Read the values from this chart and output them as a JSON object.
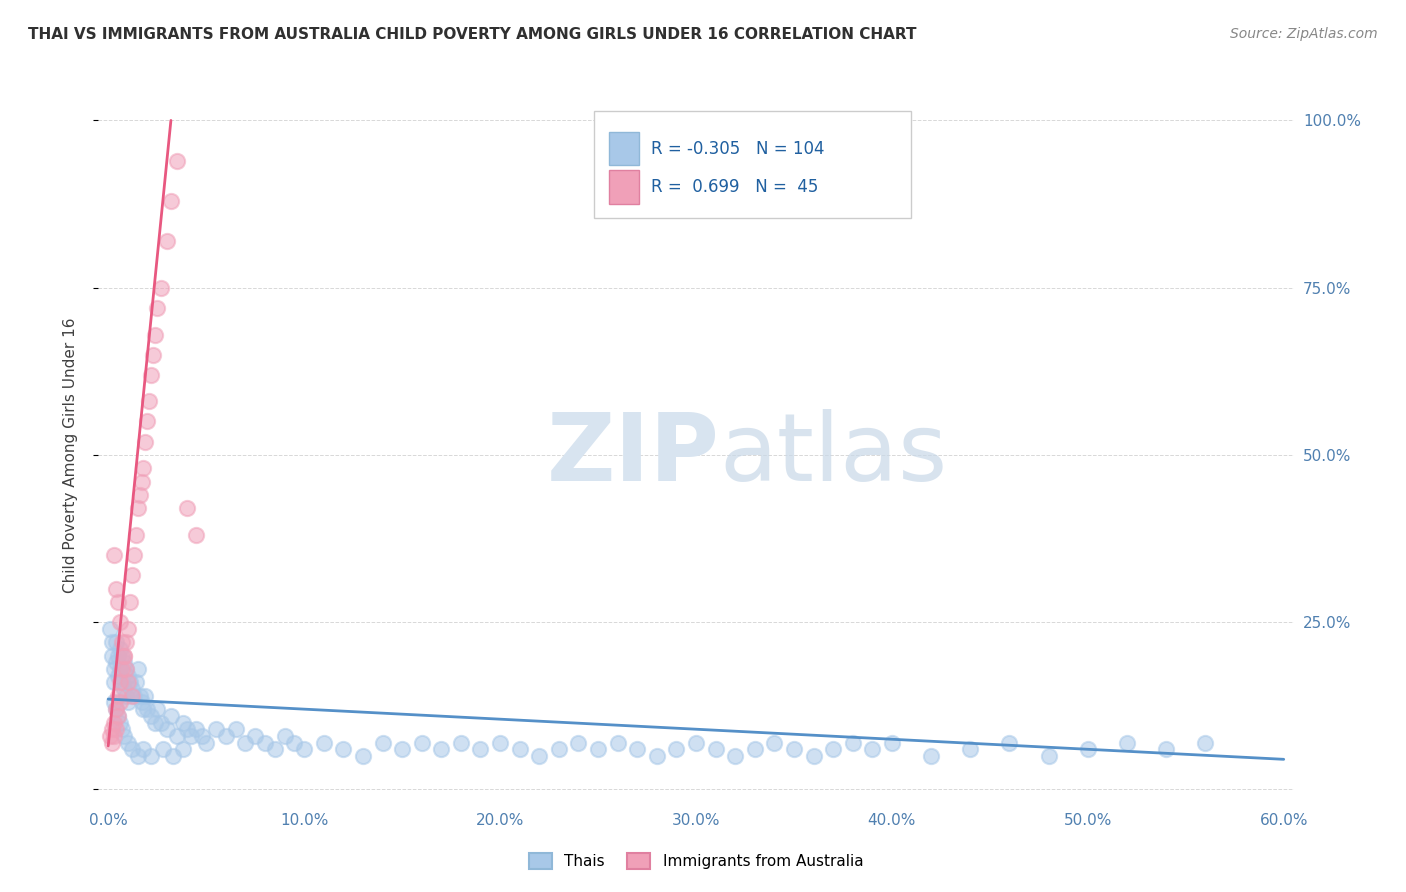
{
  "title": "THAI VS IMMIGRANTS FROM AUSTRALIA CHILD POVERTY AMONG GIRLS UNDER 16 CORRELATION CHART",
  "source": "Source: ZipAtlas.com",
  "ylabel": "Child Poverty Among Girls Under 16",
  "xlim": [
    -0.005,
    0.605
  ],
  "ylim": [
    -0.02,
    1.02
  ],
  "xticks": [
    0.0,
    0.1,
    0.2,
    0.3,
    0.4,
    0.5,
    0.6
  ],
  "xticklabels": [
    "0.0%",
    "10.0%",
    "20.0%",
    "30.0%",
    "40.0%",
    "50.0%",
    "60.0%"
  ],
  "yticks": [
    0.0,
    0.25,
    0.5,
    0.75,
    1.0
  ],
  "yticklabels_right": [
    "",
    "25.0%",
    "50.0%",
    "75.0%",
    "100.0%"
  ],
  "legend1_R": "-0.305",
  "legend1_N": "104",
  "legend2_R": "0.699",
  "legend2_N": "45",
  "blue_dot_color": "#a8c8e8",
  "pink_dot_color": "#f0a0b8",
  "blue_line_color": "#5590c8",
  "pink_line_color": "#e85880",
  "watermark_zip": "ZIP",
  "watermark_atlas": "atlas",
  "watermark_color": "#d8e4f0",
  "background_color": "#ffffff",
  "grid_color": "#d8d8d8",
  "title_color": "#303030",
  "axis_label_color": "#404040",
  "tick_color": "#5080b0",
  "blue_trend_x": [
    0.0,
    0.6
  ],
  "blue_trend_y": [
    0.135,
    0.045
  ],
  "pink_trend_x": [
    0.0,
    0.032
  ],
  "pink_trend_y": [
    0.065,
    1.0
  ],
  "thai_scatter_x": [
    0.001,
    0.002,
    0.002,
    0.003,
    0.003,
    0.004,
    0.004,
    0.005,
    0.005,
    0.006,
    0.006,
    0.007,
    0.007,
    0.008,
    0.008,
    0.009,
    0.009,
    0.01,
    0.01,
    0.011,
    0.012,
    0.013,
    0.014,
    0.015,
    0.016,
    0.017,
    0.018,
    0.019,
    0.02,
    0.022,
    0.024,
    0.025,
    0.027,
    0.03,
    0.032,
    0.035,
    0.038,
    0.04,
    0.042,
    0.045,
    0.048,
    0.05,
    0.055,
    0.06,
    0.065,
    0.07,
    0.075,
    0.08,
    0.085,
    0.09,
    0.095,
    0.1,
    0.11,
    0.12,
    0.13,
    0.14,
    0.15,
    0.16,
    0.17,
    0.18,
    0.19,
    0.2,
    0.21,
    0.22,
    0.23,
    0.24,
    0.25,
    0.26,
    0.27,
    0.28,
    0.29,
    0.3,
    0.31,
    0.32,
    0.33,
    0.34,
    0.35,
    0.36,
    0.37,
    0.38,
    0.39,
    0.4,
    0.42,
    0.44,
    0.46,
    0.48,
    0.5,
    0.52,
    0.54,
    0.56,
    0.003,
    0.004,
    0.005,
    0.006,
    0.007,
    0.008,
    0.01,
    0.012,
    0.015,
    0.018,
    0.022,
    0.028,
    0.033,
    0.038
  ],
  "thai_scatter_y": [
    0.24,
    0.22,
    0.2,
    0.18,
    0.16,
    0.22,
    0.19,
    0.2,
    0.17,
    0.21,
    0.18,
    0.2,
    0.16,
    0.19,
    0.15,
    0.18,
    0.14,
    0.17,
    0.13,
    0.16,
    0.15,
    0.14,
    0.16,
    0.18,
    0.14,
    0.13,
    0.12,
    0.14,
    0.12,
    0.11,
    0.1,
    0.12,
    0.1,
    0.09,
    0.11,
    0.08,
    0.1,
    0.09,
    0.08,
    0.09,
    0.08,
    0.07,
    0.09,
    0.08,
    0.09,
    0.07,
    0.08,
    0.07,
    0.06,
    0.08,
    0.07,
    0.06,
    0.07,
    0.06,
    0.05,
    0.07,
    0.06,
    0.07,
    0.06,
    0.07,
    0.06,
    0.07,
    0.06,
    0.05,
    0.06,
    0.07,
    0.06,
    0.07,
    0.06,
    0.05,
    0.06,
    0.07,
    0.06,
    0.05,
    0.06,
    0.07,
    0.06,
    0.05,
    0.06,
    0.07,
    0.06,
    0.07,
    0.05,
    0.06,
    0.07,
    0.05,
    0.06,
    0.07,
    0.06,
    0.07,
    0.13,
    0.12,
    0.11,
    0.1,
    0.09,
    0.08,
    0.07,
    0.06,
    0.05,
    0.06,
    0.05,
    0.06,
    0.05,
    0.06
  ],
  "aus_scatter_x": [
    0.001,
    0.002,
    0.002,
    0.003,
    0.003,
    0.004,
    0.004,
    0.005,
    0.005,
    0.006,
    0.006,
    0.007,
    0.008,
    0.009,
    0.01,
    0.011,
    0.012,
    0.013,
    0.014,
    0.015,
    0.016,
    0.017,
    0.018,
    0.019,
    0.02,
    0.021,
    0.022,
    0.023,
    0.024,
    0.025,
    0.027,
    0.03,
    0.032,
    0.035,
    0.04,
    0.045,
    0.003,
    0.004,
    0.005,
    0.006,
    0.007,
    0.008,
    0.009,
    0.01,
    0.012
  ],
  "aus_scatter_y": [
    0.08,
    0.09,
    0.07,
    0.1,
    0.08,
    0.12,
    0.09,
    0.14,
    0.11,
    0.16,
    0.13,
    0.18,
    0.2,
    0.22,
    0.24,
    0.28,
    0.32,
    0.35,
    0.38,
    0.42,
    0.44,
    0.46,
    0.48,
    0.52,
    0.55,
    0.58,
    0.62,
    0.65,
    0.68,
    0.72,
    0.75,
    0.82,
    0.88,
    0.94,
    0.42,
    0.38,
    0.35,
    0.3,
    0.28,
    0.25,
    0.22,
    0.2,
    0.18,
    0.16,
    0.14
  ]
}
